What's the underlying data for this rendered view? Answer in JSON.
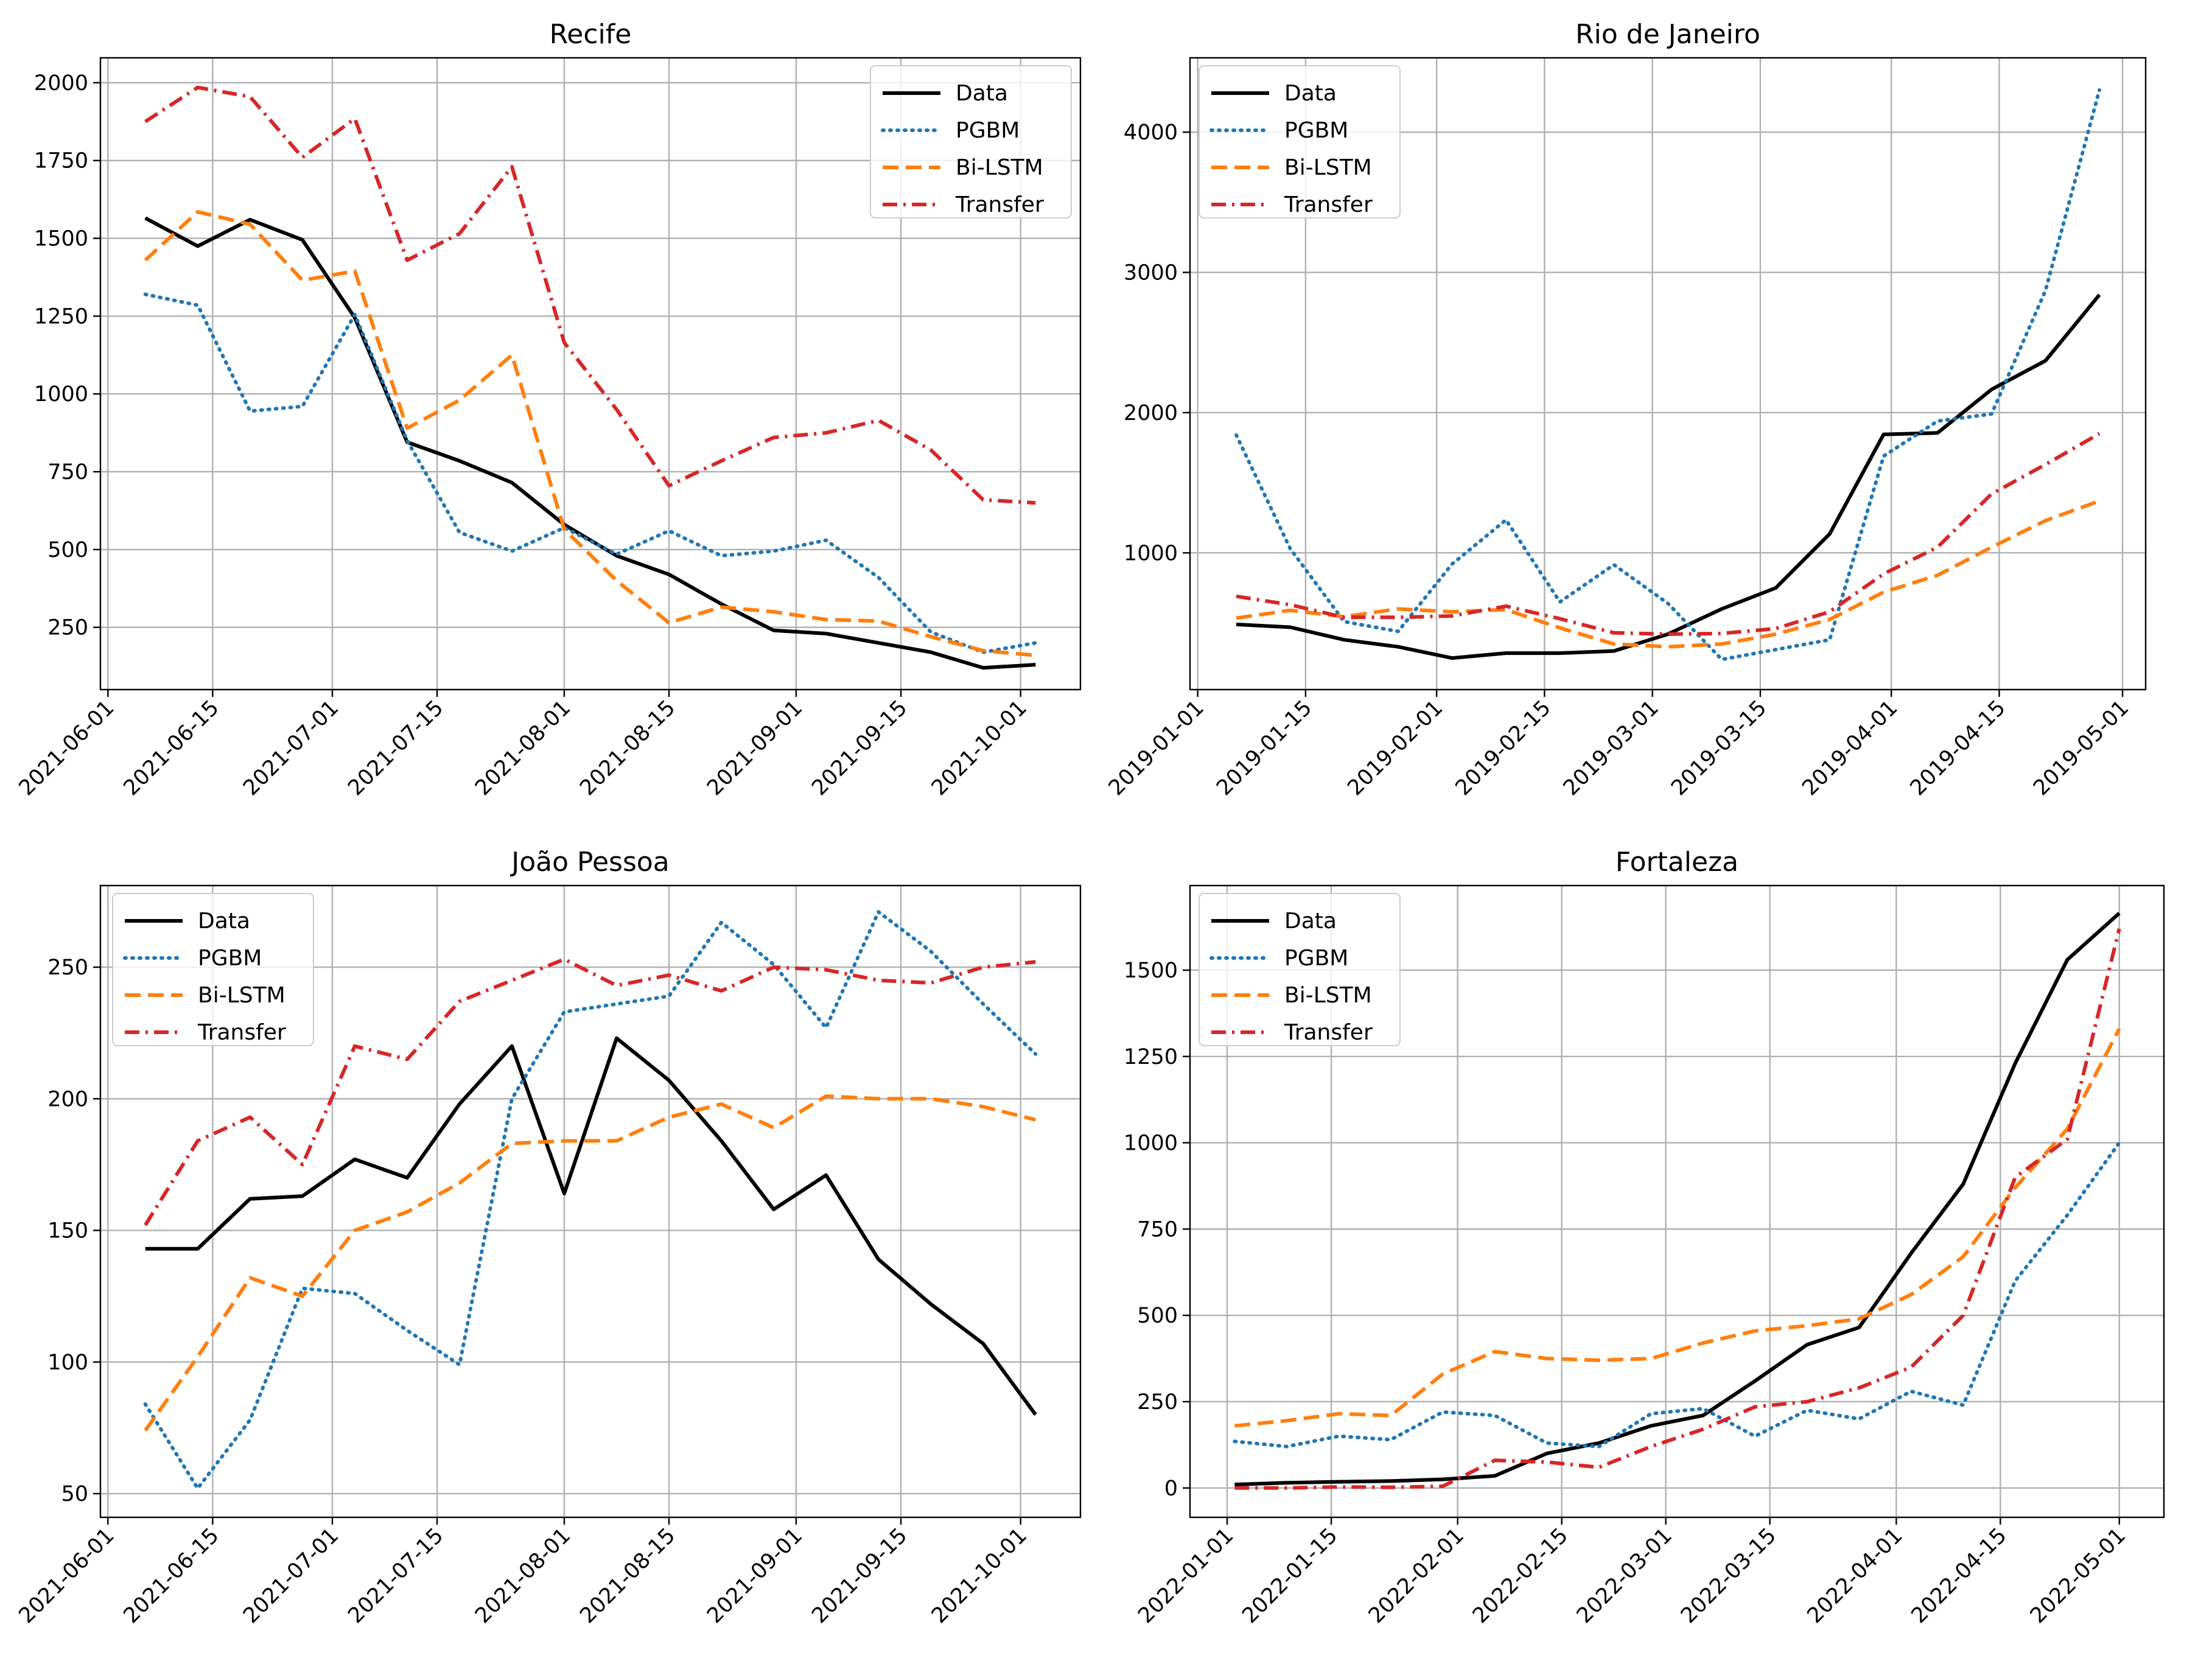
{
  "chart_data": [
    {
      "type": "line",
      "title": "Recife",
      "x": [
        "2021-06-06",
        "2021-06-13",
        "2021-06-20",
        "2021-06-27",
        "2021-07-04",
        "2021-07-11",
        "2021-07-18",
        "2021-07-25",
        "2021-08-01",
        "2021-08-08",
        "2021-08-15",
        "2021-08-22",
        "2021-08-29",
        "2021-09-05",
        "2021-09-12",
        "2021-09-19",
        "2021-09-26",
        "2021-10-03"
      ],
      "series": [
        {
          "name": "Data",
          "values": [
            1565,
            1475,
            1560,
            1495,
            1245,
            845,
            785,
            715,
            580,
            480,
            420,
            325,
            240,
            230,
            200,
            170,
            120,
            130
          ]
        },
        {
          "name": "PGBM",
          "values": [
            1320,
            1285,
            945,
            960,
            1255,
            850,
            555,
            495,
            570,
            485,
            560,
            480,
            495,
            530,
            410,
            235,
            170,
            200
          ]
        },
        {
          "name": "Bi-LSTM",
          "values": [
            1430,
            1585,
            1545,
            1365,
            1395,
            890,
            980,
            1125,
            565,
            400,
            265,
            315,
            300,
            275,
            270,
            220,
            175,
            160
          ]
        },
        {
          "name": "Transfer",
          "values": [
            1875,
            1985,
            1955,
            1760,
            1885,
            1430,
            1515,
            1730,
            1165,
            950,
            705,
            785,
            860,
            875,
            915,
            820,
            660,
            650
          ]
        }
      ],
      "xticks": [
        "2021-06-01",
        "2021-06-15",
        "2021-07-01",
        "2021-07-15",
        "2021-08-01",
        "2021-08-15",
        "2021-09-01",
        "2021-09-15",
        "2021-10-01"
      ],
      "xlim": [
        "2021-05-31",
        "2021-10-09"
      ],
      "yticks": [
        250,
        500,
        750,
        1000,
        1250,
        1500,
        1750,
        2000
      ],
      "ylim": [
        50,
        2080
      ],
      "grid": true,
      "legend": "top-right"
    },
    {
      "type": "line",
      "title": "Rio de Janeiro",
      "x": [
        "2019-01-06",
        "2019-01-13",
        "2019-01-20",
        "2019-01-27",
        "2019-02-03",
        "2019-02-10",
        "2019-02-17",
        "2019-02-24",
        "2019-03-03",
        "2019-03-10",
        "2019-03-17",
        "2019-03-24",
        "2019-03-31",
        "2019-04-07",
        "2019-04-14",
        "2019-04-21",
        "2019-04-28"
      ],
      "series": [
        {
          "name": "Data",
          "values": [
            490,
            470,
            380,
            330,
            250,
            285,
            285,
            300,
            420,
            600,
            750,
            1135,
            1845,
            1855,
            2165,
            2370,
            2840
          ]
        },
        {
          "name": "PGBM",
          "values": [
            1840,
            1030,
            510,
            440,
            920,
            1235,
            650,
            915,
            640,
            240,
            310,
            380,
            1690,
            1940,
            1990,
            2870,
            4300
          ]
        },
        {
          "name": "Bi-LSTM",
          "values": [
            535,
            590,
            545,
            600,
            580,
            595,
            465,
            350,
            330,
            350,
            420,
            525,
            720,
            840,
            1040,
            1230,
            1370
          ]
        },
        {
          "name": "Transfer",
          "values": [
            690,
            630,
            540,
            540,
            550,
            620,
            530,
            430,
            420,
            425,
            460,
            580,
            850,
            1040,
            1420,
            1630,
            1850
          ]
        }
      ],
      "xticks": [
        "2019-01-01",
        "2019-01-15",
        "2019-02-01",
        "2019-02-15",
        "2019-03-01",
        "2019-03-15",
        "2019-04-01",
        "2019-04-15",
        "2019-05-01"
      ],
      "xlim": [
        "2018-12-31",
        "2019-05-04"
      ],
      "yticks": [
        1000,
        2000,
        3000,
        4000
      ],
      "ylim": [
        25,
        4530
      ],
      "grid": true,
      "legend": "top-left"
    },
    {
      "type": "line",
      "title": "João Pessoa",
      "x": [
        "2021-06-06",
        "2021-06-13",
        "2021-06-20",
        "2021-06-27",
        "2021-07-04",
        "2021-07-11",
        "2021-07-18",
        "2021-07-25",
        "2021-08-01",
        "2021-08-08",
        "2021-08-15",
        "2021-08-22",
        "2021-08-29",
        "2021-09-05",
        "2021-09-12",
        "2021-09-19",
        "2021-09-26",
        "2021-10-03"
      ],
      "series": [
        {
          "name": "Data",
          "values": [
            143,
            143,
            162,
            163,
            177,
            170,
            198,
            220,
            164,
            223,
            207,
            184,
            158,
            171,
            139,
            122,
            107,
            80
          ]
        },
        {
          "name": "PGBM",
          "values": [
            84,
            52,
            78,
            128,
            126,
            112,
            99,
            200,
            233,
            236,
            239,
            267,
            251,
            227,
            271,
            256,
            236,
            217
          ]
        },
        {
          "name": "Bi-LSTM",
          "values": [
            74,
            102,
            132,
            125,
            150,
            157,
            168,
            183,
            184,
            184,
            193,
            198,
            189,
            201,
            200,
            200,
            197,
            192
          ]
        },
        {
          "name": "Transfer",
          "values": [
            152,
            184,
            193,
            175,
            220,
            215,
            237,
            245,
            253,
            243,
            247,
            241,
            250,
            249,
            245,
            244,
            250,
            252
          ]
        }
      ],
      "xticks": [
        "2021-06-01",
        "2021-06-15",
        "2021-07-01",
        "2021-07-15",
        "2021-08-01",
        "2021-08-15",
        "2021-09-01",
        "2021-09-15",
        "2021-10-01"
      ],
      "xlim": [
        "2021-05-31",
        "2021-10-09"
      ],
      "yticks": [
        50,
        100,
        150,
        200,
        250
      ],
      "ylim": [
        41,
        281
      ],
      "grid": true,
      "legend": "top-left"
    },
    {
      "type": "line",
      "title": "Fortaleza",
      "x": [
        "2022-01-02",
        "2022-01-09",
        "2022-01-16",
        "2022-01-23",
        "2022-01-30",
        "2022-02-06",
        "2022-02-13",
        "2022-02-20",
        "2022-02-27",
        "2022-03-06",
        "2022-03-13",
        "2022-03-20",
        "2022-03-27",
        "2022-04-03",
        "2022-04-10",
        "2022-04-17",
        "2022-04-24",
        "2022-05-01"
      ],
      "series": [
        {
          "name": "Data",
          "values": [
            10,
            15,
            18,
            20,
            25,
            35,
            100,
            130,
            180,
            210,
            310,
            415,
            465,
            680,
            880,
            1230,
            1530,
            1665
          ]
        },
        {
          "name": "PGBM",
          "values": [
            135,
            120,
            150,
            140,
            220,
            210,
            130,
            120,
            215,
            230,
            150,
            225,
            200,
            280,
            240,
            600,
            790,
            1000
          ]
        },
        {
          "name": "Bi-LSTM",
          "values": [
            180,
            195,
            215,
            210,
            330,
            395,
            375,
            370,
            375,
            420,
            455,
            470,
            490,
            560,
            670,
            870,
            1040,
            1330
          ]
        },
        {
          "name": "Transfer",
          "values": [
            0,
            0,
            3,
            2,
            5,
            80,
            75,
            60,
            120,
            170,
            235,
            250,
            290,
            350,
            500,
            900,
            1010,
            1620
          ]
        }
      ],
      "xticks": [
        "2022-01-01",
        "2022-01-15",
        "2022-02-01",
        "2022-02-15",
        "2022-03-01",
        "2022-03-15",
        "2022-04-01",
        "2022-04-15",
        "2022-05-01"
      ],
      "xlim": [
        "2021-12-27",
        "2022-05-07"
      ],
      "yticks": [
        0,
        250,
        500,
        750,
        1000,
        1250,
        1500
      ],
      "ylim": [
        -85,
        1745
      ],
      "grid": true,
      "legend": "top-left"
    }
  ],
  "legend_styles": [
    {
      "name": "Data",
      "color": "#000000",
      "dash": "solid"
    },
    {
      "name": "PGBM",
      "color": "#1f77b4",
      "dash": "dotted"
    },
    {
      "name": "Bi-LSTM",
      "color": "#ff7f0e",
      "dash": "dashed"
    },
    {
      "name": "Transfer",
      "color": "#d62728",
      "dash": "dashdot"
    }
  ]
}
